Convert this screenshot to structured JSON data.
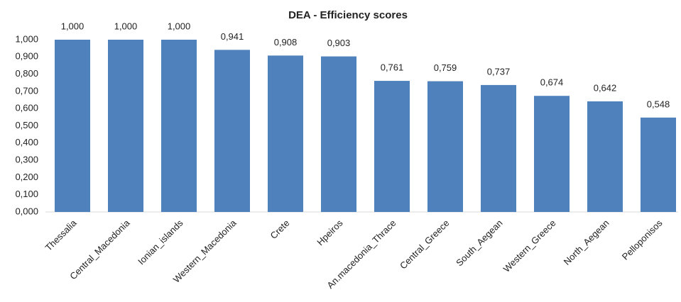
{
  "chart_data": {
    "type": "bar",
    "title": "DEA - Efficiency scores",
    "categories": [
      "Thessalia",
      "Central_Macedonia",
      "Ionian_islands",
      "Western_Macedonia",
      "Crete",
      "Hpeiros",
      "An.macedonia_Thrace",
      "Central_Greece",
      "South_Aegean",
      "Western_Greece",
      "North_Aegean",
      "Pelloponisos"
    ],
    "values": [
      1.0,
      1.0,
      1.0,
      0.941,
      0.908,
      0.903,
      0.761,
      0.759,
      0.737,
      0.674,
      0.642,
      0.548
    ],
    "value_labels": [
      "1,000",
      "1,000",
      "1,000",
      "0,941",
      "0,908",
      "0,903",
      "0,761",
      "0,759",
      "0,737",
      "0,674",
      "0,642",
      "0,548"
    ],
    "color": "#4f81bd",
    "ylim": [
      0,
      1
    ],
    "yticks": [
      {
        "value": 0,
        "label": "0,000"
      },
      {
        "value": 0.1,
        "label": "0,100"
      },
      {
        "value": 0.2,
        "label": "0,200"
      },
      {
        "value": 0.3,
        "label": "0,300"
      },
      {
        "value": 0.4,
        "label": "0,400"
      },
      {
        "value": 0.5,
        "label": "0,500"
      },
      {
        "value": 0.6,
        "label": "0,600"
      },
      {
        "value": 0.7,
        "label": "0,700"
      },
      {
        "value": 0.8,
        "label": "0,800"
      },
      {
        "value": 0.9,
        "label": "0,900"
      },
      {
        "value": 1.0,
        "label": "1,000"
      }
    ],
    "grid": false
  }
}
